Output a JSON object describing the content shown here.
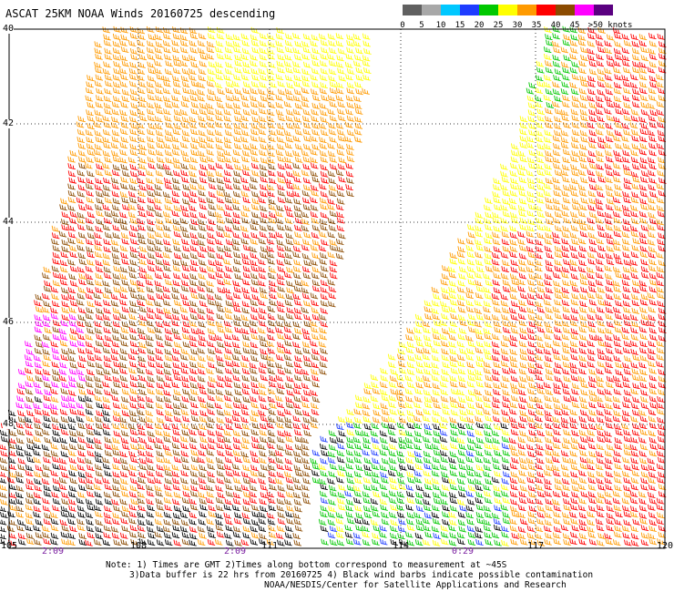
{
  "title": "ASCAT 25KM NOAA Winds 20160725 descending",
  "legend": {
    "labels": [
      "0",
      "5",
      "10",
      "15",
      "20",
      "25",
      "30",
      "35",
      "40",
      "45",
      ">50 knots"
    ],
    "colors": [
      "#606060",
      "#a8a8a8",
      "#00c8ff",
      "#1e3cff",
      "#00c800",
      "#ffff00",
      "#ff9a00",
      "#ff0000",
      "#8b4a00",
      "#ff00ff",
      "#5a0080"
    ]
  },
  "map": {
    "lat_labels": [
      "40",
      "42",
      "44",
      "46",
      "48"
    ],
    "lon_labels": [
      "105",
      "108",
      "111",
      "114",
      "117",
      "120"
    ],
    "time_labels": [
      "2:09",
      "2:09",
      "0:29"
    ],
    "lat_range": [
      -49,
      -40
    ],
    "lon_range": [
      105,
      120
    ]
  },
  "notes": {
    "line1": "Note: 1) Times are GMT 2)Times along bottom correspond to measurement at ~45S",
    "line2": "3)Data buffer is 22 hrs from 20160725 4) Black wind barbs indicate possible contamination",
    "line3": "NOAA/NESDIS/Center for Satellite Applications and Research"
  }
}
